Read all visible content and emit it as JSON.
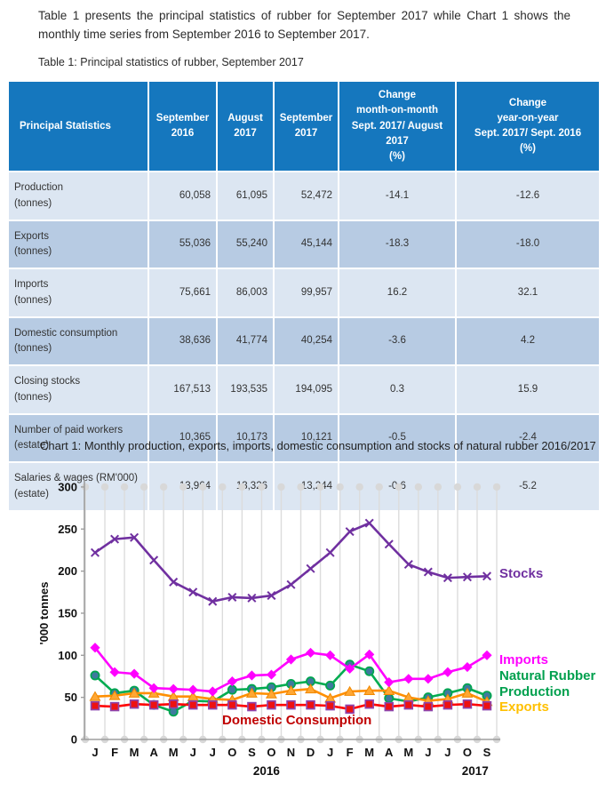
{
  "page": {
    "intro": "Table 1 presents the principal statistics of rubber for September 2017 while Chart 1 shows the monthly time series from September 2016 to September 2017.",
    "table_caption": "Table 1: Principal statistics of rubber, September 2017",
    "chart_caption": "Chart 1: Monthly production, exports, imports, domestic consumption and stocks of natural rubber 2016/2017"
  },
  "table": {
    "columns": [
      "Principal Statistics",
      "September\n2016",
      "August\n2017",
      "September\n2017",
      "Change\nmonth-on-month\nSept. 2017/ August 2017\n(%)",
      "Change\nyear-on-year\nSept. 2017/ Sept. 2016\n(%)"
    ],
    "rows": [
      {
        "label": "Production",
        "sub": "(tonnes)",
        "cells": [
          "60,058",
          "61,095",
          "52,472",
          "-14.1",
          "-12.6"
        ]
      },
      {
        "label": "Exports",
        "sub": "(tonnes)",
        "cells": [
          "55,036",
          "55,240",
          "45,144",
          "-18.3",
          "-18.0"
        ]
      },
      {
        "label": "Imports",
        "sub": "(tonnes)",
        "cells": [
          "75,661",
          "86,003",
          "99,957",
          "16.2",
          "32.1"
        ]
      },
      {
        "label": "Domestic consumption",
        "sub": "(tonnes)",
        "cells": [
          "38,636",
          "41,774",
          "40,254",
          "-3.6",
          "4.2"
        ]
      },
      {
        "label": "Closing stocks",
        "sub": "(tonnes)",
        "cells": [
          "167,513",
          "193,535",
          "194,095",
          "0.3",
          "15.9"
        ]
      },
      {
        "label": "Number of paid workers (estate)",
        "sub": "",
        "cells": [
          "10,365",
          "10,173",
          "10,121",
          "-0.5",
          "-2.4"
        ]
      },
      {
        "label": "Salaries & wages (RM'000)",
        "sub": "(estate)",
        "cells": [
          "13,964",
          "13,326",
          "13,244",
          "-0.6",
          "-5.2"
        ]
      }
    ],
    "header_bg": "#1577BE",
    "row_light_bg": "#DCE6F2",
    "row_dark_bg": "#B7CBE3"
  },
  "chart_data": {
    "type": "line",
    "title": "Chart 1: Monthly production, exports, imports, domestic consumption and stocks of natural rubber 2016/2017",
    "ylabel": "'000 tonnes",
    "ylim": [
      0,
      300
    ],
    "ytick_step": 50,
    "yticks": [
      "0",
      "50",
      "100",
      "150",
      "200",
      "250",
      "300"
    ],
    "grid": "vertical-droplines-with-dots",
    "legend_position": "inline-right-labels",
    "x": [
      "J",
      "F",
      "M",
      "A",
      "M",
      "J",
      "J",
      "O",
      "S",
      "O",
      "N",
      "D",
      "J",
      "F",
      "M",
      "A",
      "M",
      "J",
      "J",
      "O",
      "S"
    ],
    "year_labels": [
      {
        "text": "2016",
        "month_index": 8.75
      },
      {
        "text": "2017",
        "month_index": 19.4
      }
    ],
    "series": [
      {
        "name": "Natural Rubber Production",
        "color": "#00AC50",
        "marker": "circle",
        "marker_fill": "#3E7A9E",
        "marker_stroke": "#00A550",
        "label_color": "#00A04E",
        "values": [
          76,
          55,
          58,
          41,
          33,
          46,
          45,
          59,
          60,
          62,
          66,
          69,
          64,
          89,
          81,
          49,
          45,
          50,
          55,
          61,
          52
        ]
      },
      {
        "name": "Exports",
        "color": "#FF8F00",
        "marker": "triangle",
        "marker_fill": "#FFA733",
        "marker_stroke": "#F08800",
        "label_color": "#FFC000",
        "values": [
          51,
          52,
          55,
          55,
          51,
          51,
          48,
          47,
          55,
          54,
          58,
          60,
          49,
          57,
          58,
          58,
          50,
          46,
          48,
          55,
          45
        ]
      },
      {
        "name": "Imports",
        "color": "#FF00FF",
        "marker": "diamond",
        "marker_fill": "#FF00FF",
        "marker_stroke": "#FF00FF",
        "label_color": "#FF00FF",
        "values": [
          109,
          80,
          78,
          61,
          60,
          59,
          57,
          69,
          76,
          77,
          95,
          103,
          100,
          84,
          101,
          68,
          72,
          72,
          80,
          86,
          100
        ]
      },
      {
        "name": "Domestic Consumption",
        "color": "#FF0000",
        "marker": "square",
        "marker_fill": "#EE1111",
        "marker_stroke": "#8E44AD",
        "label_color": "#C00000",
        "values": [
          40,
          39,
          42,
          41,
          42,
          41,
          41,
          41,
          39,
          41,
          41,
          41,
          40,
          36,
          42,
          39,
          41,
          39,
          41,
          42,
          40
        ]
      },
      {
        "name": "Stocks",
        "color": "#7030A0",
        "marker": "x",
        "marker_fill": "#7030A0",
        "marker_stroke": "#7030A0",
        "label_color": "#7030A0",
        "values": [
          222,
          238,
          240,
          213,
          187,
          175,
          164,
          169,
          168,
          171,
          184,
          203,
          222,
          247,
          257,
          232,
          208,
          199,
          192,
          193,
          194
        ]
      }
    ],
    "annotations": [
      {
        "text": "Stocks",
        "x": 562,
        "y": 122,
        "color": "#7030A0"
      },
      {
        "text": "Imports",
        "x": 562,
        "y": 219,
        "color": "#FF00FF"
      },
      {
        "text": "Natural Rubber\nProduction",
        "x": 562,
        "y": 237,
        "color": "#00A04E"
      },
      {
        "text": "Exports",
        "x": 562,
        "y": 272,
        "color": "#FFC000"
      },
      {
        "text": "Domestic Consumption",
        "x": 250,
        "y": 287,
        "color": "#C00000"
      }
    ]
  }
}
